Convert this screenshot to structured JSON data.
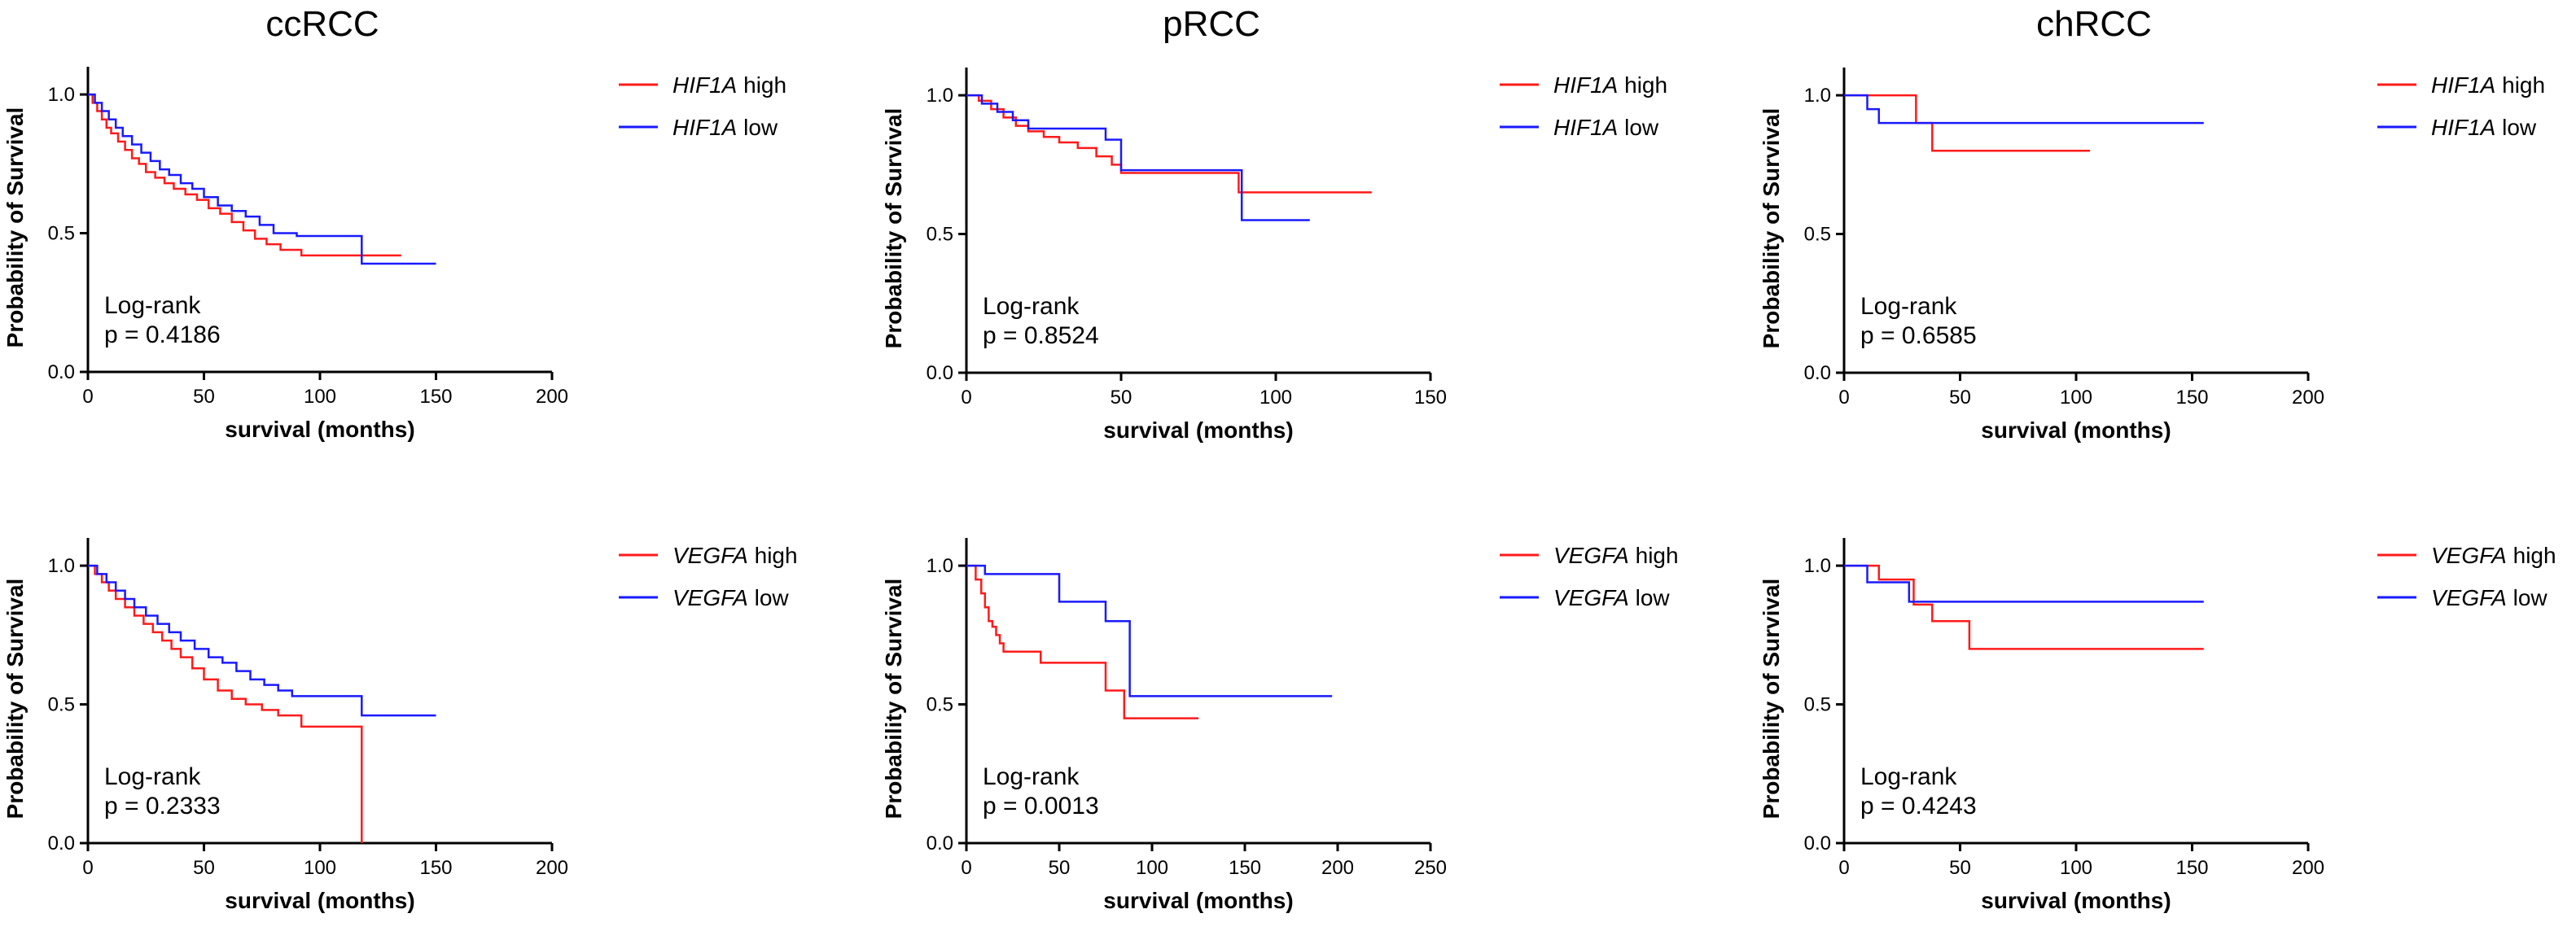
{
  "colors": {
    "high": "#ff1a1a",
    "low": "#1a1aff"
  },
  "chart_data": [
    {
      "type": "line",
      "subtype": "kaplan-meier",
      "title": "ccRCC",
      "gene": "HIF1A",
      "xlabel": "survival (months)",
      "ylabel": "Probability of Survival",
      "xlim": [
        0,
        200
      ],
      "ylim": [
        0,
        1.1
      ],
      "xticks": [
        0,
        50,
        100,
        150,
        200
      ],
      "yticks": [
        0.0,
        0.5,
        1.0
      ],
      "ytick_labels": [
        "0.0",
        "0.5",
        "1.0"
      ],
      "logrank_label": "Log-rank",
      "p_text": "p = 0.4186",
      "series": [
        {
          "name": "high",
          "legend_text": "high",
          "color": "#ff1a1a",
          "x": [
            0,
            2,
            4,
            6,
            8,
            10,
            13,
            16,
            19,
            22,
            25,
            29,
            33,
            37,
            42,
            47,
            52,
            57,
            62,
            67,
            72,
            77,
            83,
            92,
            105,
            120,
            135
          ],
          "y": [
            1.0,
            0.97,
            0.94,
            0.91,
            0.88,
            0.86,
            0.83,
            0.8,
            0.77,
            0.75,
            0.72,
            0.7,
            0.68,
            0.66,
            0.64,
            0.62,
            0.59,
            0.57,
            0.54,
            0.51,
            0.48,
            0.46,
            0.44,
            0.42,
            0.42,
            0.42,
            0.42
          ]
        },
        {
          "name": "low",
          "legend_text": "low",
          "color": "#1a1aff",
          "x": [
            0,
            3,
            6,
            9,
            12,
            15,
            19,
            23,
            27,
            31,
            35,
            40,
            45,
            50,
            56,
            62,
            68,
            74,
            80,
            90,
            100,
            118,
            135,
            150
          ],
          "y": [
            1.0,
            0.97,
            0.94,
            0.91,
            0.88,
            0.85,
            0.82,
            0.79,
            0.76,
            0.73,
            0.71,
            0.68,
            0.66,
            0.63,
            0.6,
            0.58,
            0.56,
            0.53,
            0.5,
            0.49,
            0.49,
            0.39,
            0.39,
            0.39
          ]
        }
      ]
    },
    {
      "type": "line",
      "subtype": "kaplan-meier",
      "title": "pRCC",
      "gene": "HIF1A",
      "xlabel": "survival (months)",
      "ylabel": "Probability of Survival",
      "xlim": [
        0,
        150
      ],
      "ylim": [
        0,
        1.1
      ],
      "xticks": [
        0,
        50,
        100,
        150
      ],
      "yticks": [
        0.0,
        0.5,
        1.0
      ],
      "ytick_labels": [
        "0.0",
        "0.5",
        "1.0"
      ],
      "logrank_label": "Log-rank",
      "p_text": "p = 0.8524",
      "series": [
        {
          "name": "high",
          "legend_text": "high",
          "color": "#ff1a1a",
          "x": [
            0,
            4,
            8,
            12,
            16,
            20,
            25,
            30,
            36,
            42,
            47,
            50,
            88,
            131
          ],
          "y": [
            1.0,
            0.98,
            0.95,
            0.92,
            0.89,
            0.87,
            0.85,
            0.83,
            0.81,
            0.78,
            0.75,
            0.72,
            0.65,
            0.65
          ]
        },
        {
          "name": "low",
          "legend_text": "low",
          "color": "#1a1aff",
          "x": [
            0,
            5,
            10,
            15,
            20,
            30,
            45,
            50,
            89,
            111
          ],
          "y": [
            1.0,
            0.97,
            0.94,
            0.91,
            0.88,
            0.88,
            0.84,
            0.73,
            0.55,
            0.55
          ]
        }
      ]
    },
    {
      "type": "line",
      "subtype": "kaplan-meier",
      "title": "chRCC",
      "gene": "HIF1A",
      "xlabel": "survival (months)",
      "ylabel": "Probability of Survival",
      "xlim": [
        0,
        200
      ],
      "ylim": [
        0,
        1.1
      ],
      "xticks": [
        0,
        50,
        100,
        150,
        200
      ],
      "yticks": [
        0.0,
        0.5,
        1.0
      ],
      "ytick_labels": [
        "0.0",
        "0.5",
        "1.0"
      ],
      "logrank_label": "Log-rank",
      "p_text": "p = 0.6585",
      "series": [
        {
          "name": "high",
          "legend_text": "high",
          "color": "#ff1a1a",
          "x": [
            0,
            31,
            38,
            106
          ],
          "y": [
            1.0,
            0.9,
            0.8,
            0.8
          ]
        },
        {
          "name": "low",
          "legend_text": "low",
          "color": "#1a1aff",
          "x": [
            0,
            10,
            15,
            155
          ],
          "y": [
            1.0,
            0.95,
            0.9,
            0.9
          ]
        }
      ]
    },
    {
      "type": "line",
      "subtype": "kaplan-meier",
      "title": "",
      "gene": "VEGFA",
      "xlabel": "survival (months)",
      "ylabel": "Probability of Survival",
      "xlim": [
        0,
        200
      ],
      "ylim": [
        0,
        1.1
      ],
      "xticks": [
        0,
        50,
        100,
        150,
        200
      ],
      "yticks": [
        0.0,
        0.5,
        1.0
      ],
      "ytick_labels": [
        "0.0",
        "0.5",
        "1.0"
      ],
      "logrank_label": "Log-rank",
      "p_text": "p = 0.2333",
      "series": [
        {
          "name": "high",
          "legend_text": "high",
          "color": "#ff1a1a",
          "x": [
            0,
            3,
            6,
            9,
            12,
            16,
            20,
            24,
            28,
            32,
            36,
            40,
            45,
            50,
            56,
            62,
            68,
            75,
            82,
            92,
            105,
            118,
            118
          ],
          "y": [
            1.0,
            0.97,
            0.94,
            0.91,
            0.88,
            0.85,
            0.82,
            0.79,
            0.76,
            0.73,
            0.7,
            0.67,
            0.63,
            0.59,
            0.55,
            0.52,
            0.5,
            0.48,
            0.46,
            0.42,
            0.42,
            0.42,
            0.0
          ]
        },
        {
          "name": "low",
          "legend_text": "low",
          "color": "#1a1aff",
          "x": [
            0,
            4,
            8,
            12,
            16,
            20,
            25,
            30,
            35,
            40,
            46,
            52,
            58,
            64,
            70,
            76,
            82,
            88,
            95,
            118,
            150
          ],
          "y": [
            1.0,
            0.97,
            0.94,
            0.91,
            0.88,
            0.85,
            0.82,
            0.79,
            0.76,
            0.73,
            0.7,
            0.67,
            0.65,
            0.62,
            0.59,
            0.57,
            0.55,
            0.53,
            0.53,
            0.46,
            0.46
          ]
        }
      ]
    },
    {
      "type": "line",
      "subtype": "kaplan-meier",
      "title": "",
      "gene": "VEGFA",
      "xlabel": "survival (months)",
      "ylabel": "Probability of Survival",
      "xlim": [
        0,
        250
      ],
      "ylim": [
        0,
        1.1
      ],
      "xticks": [
        0,
        50,
        100,
        150,
        200,
        250
      ],
      "yticks": [
        0.0,
        0.5,
        1.0
      ],
      "ytick_labels": [
        "0.0",
        "0.5",
        "1.0"
      ],
      "logrank_label": "Log-rank",
      "p_text": "p = 0.0013",
      "series": [
        {
          "name": "high",
          "legend_text": "high",
          "color": "#ff1a1a",
          "x": [
            0,
            5,
            8,
            10,
            12,
            14,
            16,
            18,
            20,
            24,
            40,
            75,
            85,
            125
          ],
          "y": [
            1.0,
            0.95,
            0.9,
            0.85,
            0.8,
            0.78,
            0.75,
            0.72,
            0.69,
            0.69,
            0.65,
            0.55,
            0.45,
            0.45
          ]
        },
        {
          "name": "low",
          "legend_text": "low",
          "color": "#1a1aff",
          "x": [
            0,
            10,
            50,
            55,
            75,
            88,
            197
          ],
          "y": [
            1.0,
            0.97,
            0.87,
            0.87,
            0.8,
            0.53,
            0.53
          ]
        }
      ]
    },
    {
      "type": "line",
      "subtype": "kaplan-meier",
      "title": "",
      "gene": "VEGFA",
      "xlabel": "survival (months)",
      "ylabel": "Probability of Survival",
      "xlim": [
        0,
        200
      ],
      "ylim": [
        0,
        1.1
      ],
      "xticks": [
        0,
        50,
        100,
        150,
        200
      ],
      "yticks": [
        0.0,
        0.5,
        1.0
      ],
      "ytick_labels": [
        "0.0",
        "0.5",
        "1.0"
      ],
      "logrank_label": "Log-rank",
      "p_text": "p = 0.4243",
      "series": [
        {
          "name": "high",
          "legend_text": "high",
          "color": "#ff1a1a",
          "x": [
            0,
            15,
            30,
            38,
            54,
            155
          ],
          "y": [
            1.0,
            0.95,
            0.86,
            0.8,
            0.7,
            0.7
          ]
        },
        {
          "name": "low",
          "legend_text": "low",
          "color": "#1a1aff",
          "x": [
            0,
            10,
            28,
            155
          ],
          "y": [
            1.0,
            0.94,
            0.87,
            0.87
          ]
        }
      ]
    }
  ]
}
